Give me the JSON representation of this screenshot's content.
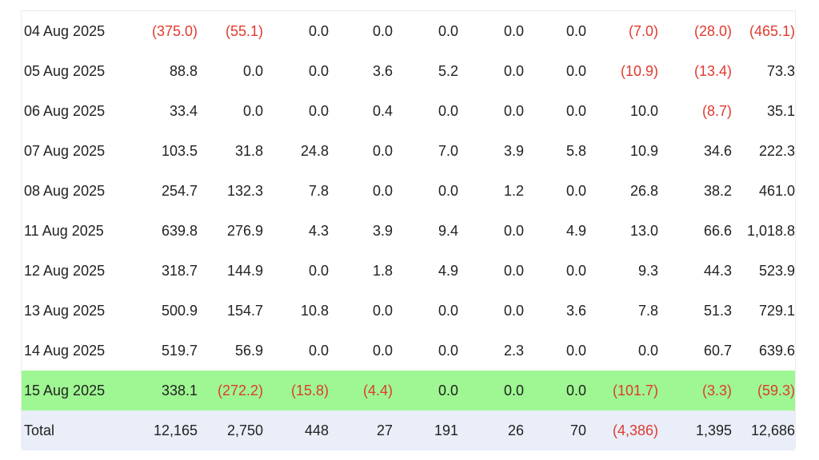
{
  "colors": {
    "negative": "#e03a2f",
    "highlight_row": "#9ef792",
    "total_row": "#e9eef9",
    "text": "#222222"
  },
  "rows": [
    {
      "date": "04 Aug 2025",
      "values": [
        "(375.0)",
        "(55.1)",
        "0.0",
        "0.0",
        "0.0",
        "0.0",
        "0.0",
        "(7.0)",
        "(28.0)",
        "(465.1)"
      ]
    },
    {
      "date": "05 Aug 2025",
      "values": [
        "88.8",
        "0.0",
        "0.0",
        "3.6",
        "5.2",
        "0.0",
        "0.0",
        "(10.9)",
        "(13.4)",
        "73.3"
      ]
    },
    {
      "date": "06 Aug 2025",
      "values": [
        "33.4",
        "0.0",
        "0.0",
        "0.4",
        "0.0",
        "0.0",
        "0.0",
        "10.0",
        "(8.7)",
        "35.1"
      ]
    },
    {
      "date": "07 Aug 2025",
      "values": [
        "103.5",
        "31.8",
        "24.8",
        "0.0",
        "7.0",
        "3.9",
        "5.8",
        "10.9",
        "34.6",
        "222.3"
      ]
    },
    {
      "date": "08 Aug 2025",
      "values": [
        "254.7",
        "132.3",
        "7.8",
        "0.0",
        "0.0",
        "1.2",
        "0.0",
        "26.8",
        "38.2",
        "461.0"
      ]
    },
    {
      "date": "11 Aug 2025",
      "values": [
        "639.8",
        "276.9",
        "4.3",
        "3.9",
        "9.4",
        "0.0",
        "4.9",
        "13.0",
        "66.6",
        "1,018.8"
      ]
    },
    {
      "date": "12 Aug 2025",
      "values": [
        "318.7",
        "144.9",
        "0.0",
        "1.8",
        "4.9",
        "0.0",
        "0.0",
        "9.3",
        "44.3",
        "523.9"
      ]
    },
    {
      "date": "13 Aug 2025",
      "values": [
        "500.9",
        "154.7",
        "10.8",
        "0.0",
        "0.0",
        "0.0",
        "3.6",
        "7.8",
        "51.3",
        "729.1"
      ]
    },
    {
      "date": "14 Aug 2025",
      "values": [
        "519.7",
        "56.9",
        "0.0",
        "0.0",
        "0.0",
        "2.3",
        "0.0",
        "0.0",
        "60.7",
        "639.6"
      ]
    },
    {
      "date": "15 Aug 2025",
      "values": [
        "338.1",
        "(272.2)",
        "(15.8)",
        "(4.4)",
        "0.0",
        "0.0",
        "0.0",
        "(101.7)",
        "(3.3)",
        "(59.3)"
      ],
      "highlighted": true
    }
  ],
  "total": {
    "label": "Total",
    "values": [
      "12,165",
      "2,750",
      "448",
      "27",
      "191",
      "26",
      "70",
      "(4,386)",
      "1,395",
      "12,686"
    ]
  }
}
